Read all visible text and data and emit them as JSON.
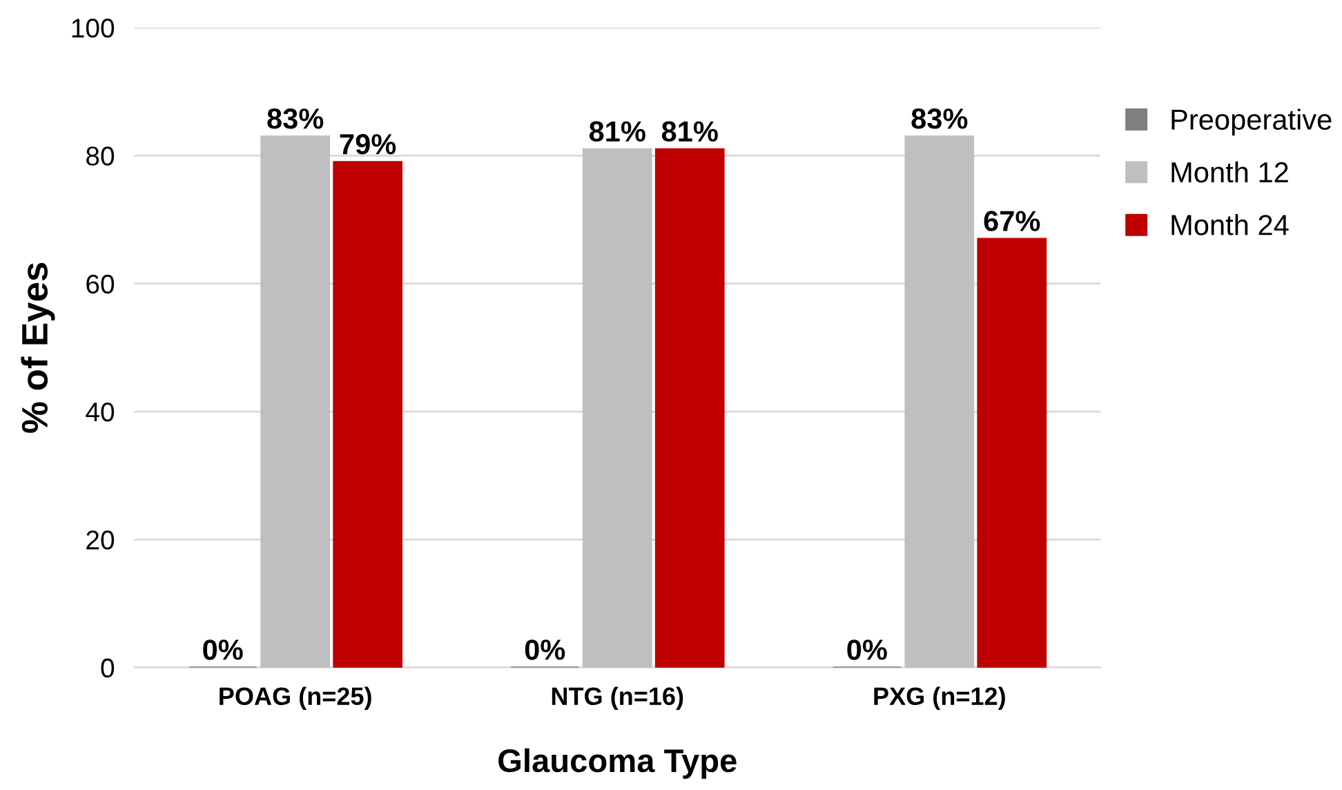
{
  "chart_data": {
    "type": "bar",
    "xlabel": "Glaucoma Type",
    "ylabel": "% of Eyes",
    "categories": [
      "POAG (n=25)",
      "NTG (n=16)",
      "PXG (n=12)"
    ],
    "series": [
      {
        "name": "Preoperative",
        "color": "#7f7f7f",
        "values": [
          0,
          0,
          0
        ],
        "value_labels": [
          "0%",
          "0%",
          "0%"
        ]
      },
      {
        "name": "Month 12",
        "color": "#bfbfbf",
        "values": [
          83,
          81,
          83
        ],
        "value_labels": [
          "83%",
          "81%",
          "83%"
        ]
      },
      {
        "name": "Month 24",
        "color": "#c00000",
        "values": [
          79,
          81,
          67
        ],
        "value_labels": [
          "79%",
          "81%",
          "67%"
        ]
      }
    ],
    "ylim": [
      0,
      100
    ],
    "yticks": [
      0,
      20,
      40,
      60,
      80,
      100
    ],
    "grid": "y",
    "legend": "right"
  }
}
